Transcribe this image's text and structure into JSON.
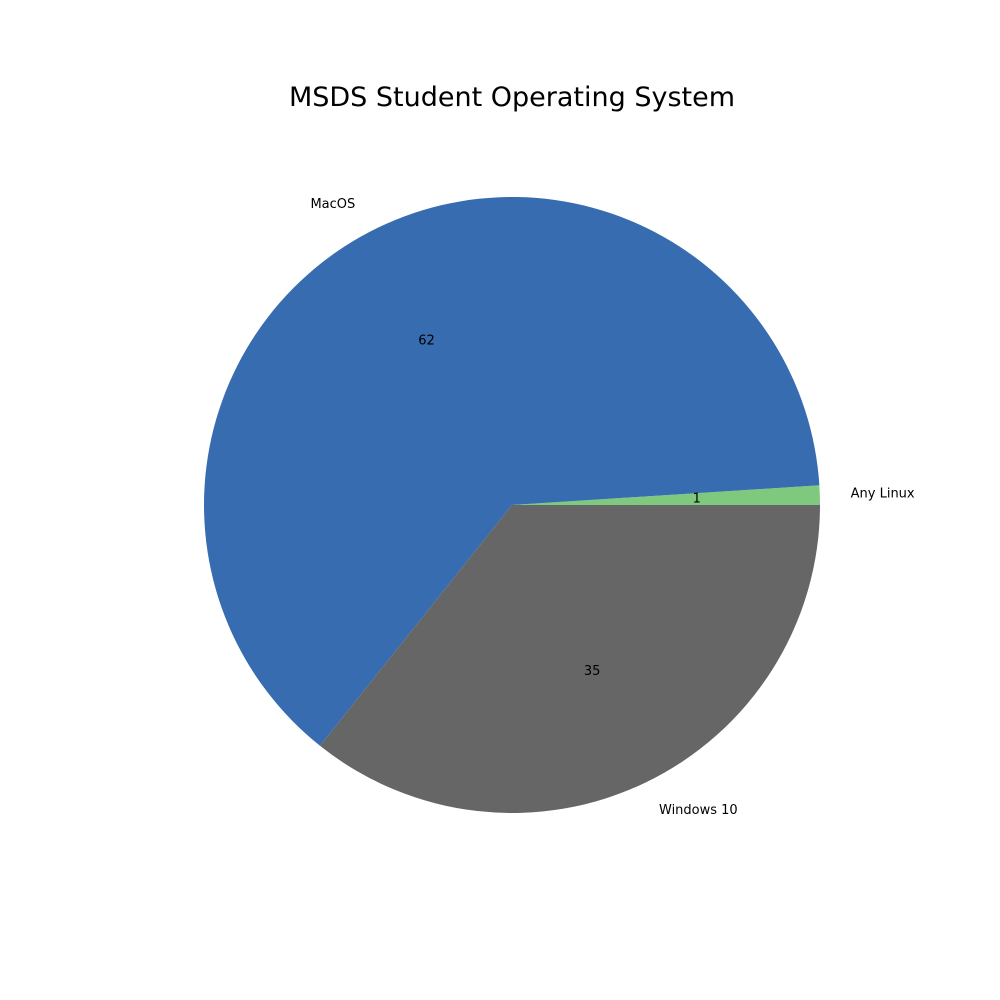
{
  "chart_data": {
    "type": "pie",
    "title": "MSDS Student Operating System",
    "slices": [
      {
        "label": "Any Linux",
        "value": 1,
        "value_label": "1",
        "color": "#7fc97f"
      },
      {
        "label": "MacOS",
        "value": 62,
        "value_label": "62",
        "color": "#386cb0"
      },
      {
        "label": "Windows 10",
        "value": 35,
        "value_label": "35",
        "color": "#666666"
      }
    ],
    "start_angle_deg": 0,
    "direction": "counterclockwise",
    "legend": "none"
  }
}
